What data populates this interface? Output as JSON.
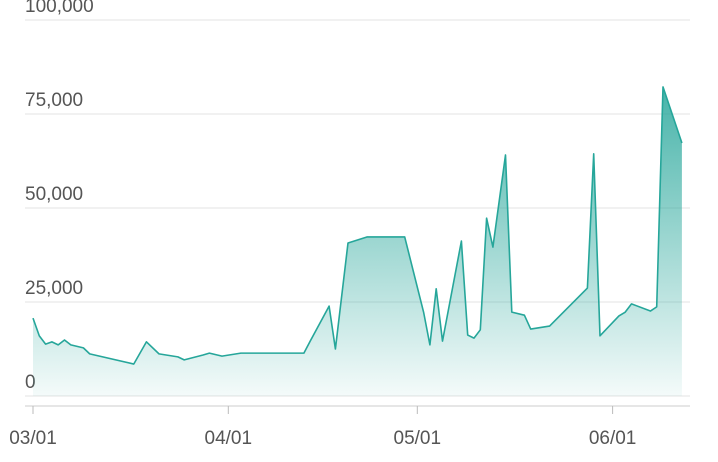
{
  "chart_data": {
    "type": "area",
    "x": [
      "03/01",
      "03/02",
      "03/03",
      "03/04",
      "03/05",
      "03/06",
      "03/07",
      "03/09",
      "03/10",
      "03/17",
      "03/19",
      "03/21",
      "03/24",
      "03/25",
      "03/28",
      "03/29",
      "03/31",
      "04/03",
      "04/13",
      "04/14",
      "04/17",
      "04/18",
      "04/20",
      "04/23",
      "04/29",
      "05/02",
      "05/03",
      "05/04",
      "05/05",
      "05/08",
      "05/09",
      "05/10",
      "05/11",
      "05/12",
      "05/13",
      "05/15",
      "05/16",
      "05/18",
      "05/19",
      "05/22",
      "05/28",
      "05/29",
      "05/30",
      "06/02",
      "06/03",
      "06/04",
      "06/07",
      "06/08",
      "06/09",
      "06/12"
    ],
    "series": [
      {
        "color": "#26a69a",
        "values": [
          20700,
          16000,
          13800,
          14400,
          13600,
          14900,
          13600,
          12800,
          11200,
          8500,
          14400,
          11200,
          10400,
          9600,
          10900,
          11400,
          10600,
          11400,
          11400,
          14600,
          23900,
          12500,
          40700,
          42300,
          42300,
          22300,
          13600,
          28500,
          14600,
          41200,
          16200,
          15400,
          17600,
          47300,
          39600,
          64100,
          22300,
          21500,
          17800,
          18600,
          28700,
          64400,
          16000,
          21300,
          22300,
          24500,
          22600,
          23700,
          82200,
          67300
        ]
      }
    ],
    "ylim": [
      0,
      100000
    ],
    "yticks": [
      0,
      {
        "value": 25000,
        "label": "25,000"
      },
      {
        "value": 50000,
        "label": "50,000"
      },
      {
        "value": 75000,
        "label": "75,000"
      },
      {
        "value": 100000,
        "label": "100,000"
      }
    ],
    "xticks": [
      "03/01",
      "04/01",
      "05/01",
      "06/01"
    ],
    "grid": true
  }
}
